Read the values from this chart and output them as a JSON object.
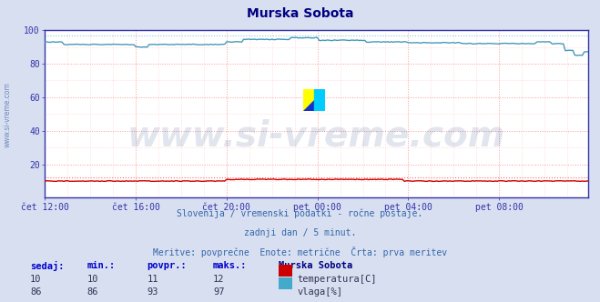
{
  "title": "Murska Sobota",
  "title_color": "#000080",
  "bg_color": "#d8dff0",
  "plot_bg_color": "#ffffff",
  "grid_major_color": "#ff9999",
  "grid_minor_color": "#ffcccc",
  "xlim": [
    0,
    287
  ],
  "ylim": [
    0,
    100
  ],
  "yticks": [
    20,
    40,
    60,
    80,
    100
  ],
  "xtick_labels": [
    "čet 12:00",
    "čet 16:00",
    "čet 20:00",
    "pet 00:00",
    "pet 04:00",
    "pet 08:00"
  ],
  "xtick_positions": [
    0,
    48,
    96,
    144,
    192,
    240
  ],
  "temp_color": "#cc0000",
  "humidity_color": "#4499bb",
  "temp_dotted_color": "#ff6666",
  "humidity_dotted_color": "#88ccdd",
  "watermark_text": "www.si-vreme.com",
  "watermark_color": "#1a3a7a",
  "watermark_alpha": 0.13,
  "watermark_fontsize": 28,
  "subtitle1": "Slovenija / vremenski podatki - ročne postaje.",
  "subtitle2": "zadnji dan / 5 minut.",
  "subtitle3": "Meritve: povprečne  Enote: metrične  Črta: prva meritev",
  "subtitle_color": "#3366aa",
  "legend_title": "Murska Sobota",
  "stats_header": [
    "sedaj:",
    "min.:",
    "povpr.:",
    "maks.:"
  ],
  "temp_stats": [
    10,
    10,
    11,
    12
  ],
  "humidity_stats": [
    86,
    86,
    93,
    97
  ],
  "temp_label": "temperatura[C]",
  "humidity_label": "vlaga[%]",
  "temp_rect_color": "#cc0000",
  "humidity_rect_color": "#44aacc",
  "n_points": 288,
  "left_label": "www.si-vreme.com",
  "left_label_color": "#4466aa",
  "spine_color": "#3333aa",
  "tick_color": "#3333aa"
}
